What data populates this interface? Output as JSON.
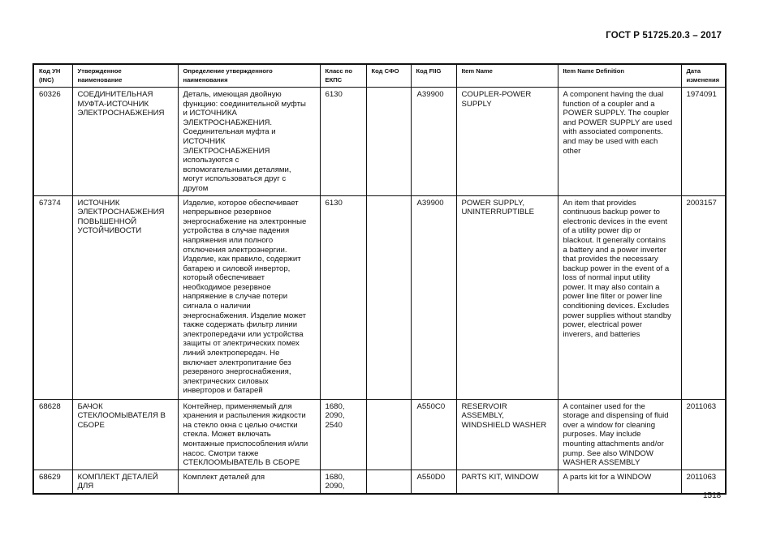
{
  "document": {
    "title": "ГОСТ Р 51725.20.3 – 2017",
    "page_number": "1518"
  },
  "table": {
    "headers": [
      "Код УН\n(INC)",
      "Утвержденное\nнаименование",
      "Определение утвержденного\nнаименования",
      "Класс по\nЕКПС",
      "Код СФО",
      "Код FIIG",
      "Item Name",
      "Item Name Definition",
      "Дата\nизменения"
    ],
    "rows": [
      [
        "60326",
        "СОЕДИНИТЕЛЬНАЯ\nМУФТА-ИСТОЧНИК\nЭЛЕКТРОСНАБЖЕНИЯ",
        "Деталь, имеющая двойную\nфункцию: соединительной муфты\nи ИСТОЧНИКА\nЭЛЕКТРОСНАБЖЕНИЯ.\nСоединительная муфта и\nИСТОЧНИК\nЭЛЕКТРОСНАБЖЕНИЯ\nиспользуются с\nвспомогательными деталями,\nмогут использоваться друг с\nдругом",
        "6130",
        "",
        "A39900",
        "COUPLER-POWER\nSUPPLY",
        "A component having the dual\nfunction of a coupler and a\nPOWER SUPPLY. The coupler\nand POWER SUPPLY are used\nwith associated components.\nand may be used with each\nother",
        "1974091"
      ],
      [
        "67374",
        "ИСТОЧНИК\nЭЛЕКТРОСНАБЖЕНИЯ\nПОВЫШЕННОЙ\nУСТОЙЧИВОСТИ",
        "Изделие, которое обеспечивает\nнепрерывное резервное\nэнергоснабжение на электронные\nустройства в случае падения\nнапряжения или полного\nотключения электроэнергии.\nИзделие, как правило, содержит\nбатарею и силовой инвертор,\nкоторый обеспечивает\nнеобходимое резервное\nнапряжение в случае потери\nсигнала о наличии\nэнергоснабжения. Изделие может\nтакже содержать фильтр линии\nэлектропередачи или устройства\nзащиты от электрических помех\nлиний электропередач. Не\nвключает электропитание без\nрезервного энергоснабжения,\nэлектрических силовых\nинверторов и батарей",
        "6130",
        "",
        "A39900",
        "POWER SUPPLY,\nUNINTERRUPTIBLE",
        "An item that provides\ncontinuous backup power to\nelectronic devices in the event\nof a utility power dip or\nblackout.  It generally contains\na battery and a power inverter\nthat provides the necessary\nbackup power in the event of a\nloss of normal input utility\npower.  It may also contain a\npower line filter or power line\nconditioning devices.  Excludes\npower supplies without standby\npower, electrical power\ninverers, and batteries",
        "2003157"
      ],
      [
        "68628",
        "БАЧОК\nСТЕКЛООМЫВАТЕЛЯ В\nСБОРЕ",
        "Контейнер, применяемый для\nхранения и распыления жидкости\nна стекло окна с целью очистки\nстекла. Может включать\nмонтажные приспособления и/или\nнасос. Смотри также\nСТЕКЛООМЫВАТЕЛЬ В СБОРЕ",
        "1680,\n2090,\n2540",
        "",
        "A550C0",
        "RESERVOIR\nASSEMBLY,\nWINDSHIELD WASHER",
        "A container used for the\nstorage and dispensing of fluid\nover a window for cleaning\npurposes. May include\nmounting attachments and/or\npump. See also WINDOW\nWASHER ASSEMBLY",
        "2011063"
      ],
      [
        "68629",
        "КОМПЛЕКТ ДЕТАЛЕЙ\nДЛЯ",
        "Комплект деталей для",
        "1680,\n2090,",
        "",
        "A550D0",
        "PARTS KIT, WINDOW",
        "A parts kit for a WINDOW",
        "2011063"
      ]
    ]
  }
}
